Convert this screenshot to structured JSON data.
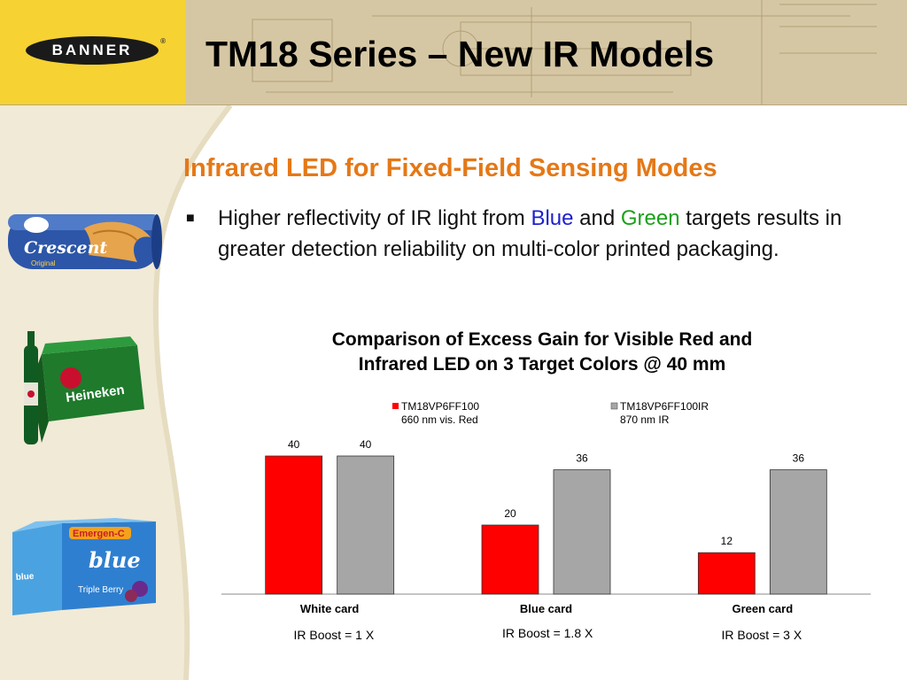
{
  "header": {
    "logo_text": "BANNER",
    "title": "TM18 Series – New IR Models"
  },
  "content": {
    "subtitle": "Infrared LED for Fixed-Field Sensing Modes",
    "bullet_symbol": "■",
    "bullet_part1": "Higher reflectivity of IR light from ",
    "bullet_blue": "Blue",
    "bullet_part2": " and ",
    "bullet_green": "Green",
    "bullet_part3": " targets results in greater detection reliability on multi-color printed packaging."
  },
  "products": {
    "crescent_brand": "Crescent",
    "crescent_sub": "Original",
    "heineken_brand": "Heineken",
    "emergen_brand": "Emergen-C",
    "emergen_sub": "blue",
    "emergen_flavor": "Triple Berry"
  },
  "colors": {
    "accent_orange": "#e57816",
    "series_red": "#ff0000",
    "series_gray": "#a6a6a6",
    "logo_yellow": "#f6d233"
  },
  "chart_data": {
    "type": "bar",
    "title_line1": "Comparison of Excess Gain for Visible Red and",
    "title_line2": "Infrared LED on 3 Target Colors @ 40 mm",
    "categories": [
      "White card",
      "Blue card",
      "Green card"
    ],
    "series": [
      {
        "name": "TM18VP6FF100",
        "subname": "660 nm vis. Red",
        "color": "#ff0000",
        "values": [
          40,
          20,
          12
        ]
      },
      {
        "name": "TM18VP6FF100IR",
        "subname": "870 nm IR",
        "color": "#a6a6a6",
        "values": [
          40,
          36,
          36
        ]
      }
    ],
    "annotations": [
      "IR Boost = 1 X",
      "IR Boost = 1.8 X",
      "IR Boost = 3 X"
    ],
    "ylim": [
      0,
      40
    ],
    "grid": false,
    "legend": "top"
  }
}
